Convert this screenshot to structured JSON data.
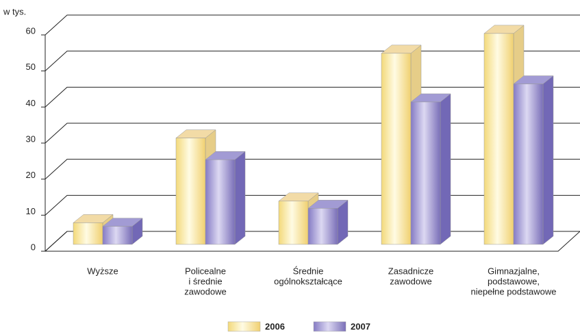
{
  "chart_data": {
    "type": "bar3d",
    "y_axis_label": "w tys.",
    "categories": [
      [
        "Wyższe"
      ],
      [
        "Policealne",
        "i średnie",
        "zawodowe"
      ],
      [
        "Średnie",
        "ogólnokształcące"
      ],
      [
        "Zasadnicze",
        "zawodowe"
      ],
      [
        "Gimnazjalne,",
        "podstawowe,",
        "niepełne podstawowe"
      ]
    ],
    "series": [
      {
        "name": "2006",
        "color": "#f7e08c",
        "values": [
          6,
          29.5,
          12,
          53,
          58.5
        ]
      },
      {
        "name": "2007",
        "color": "#8a80c8",
        "values": [
          5,
          23.5,
          10,
          39.5,
          44.5
        ]
      }
    ],
    "ylim": [
      0,
      60
    ],
    "yticks": [
      0,
      10,
      20,
      30,
      40,
      50,
      60
    ],
    "grid": true
  }
}
